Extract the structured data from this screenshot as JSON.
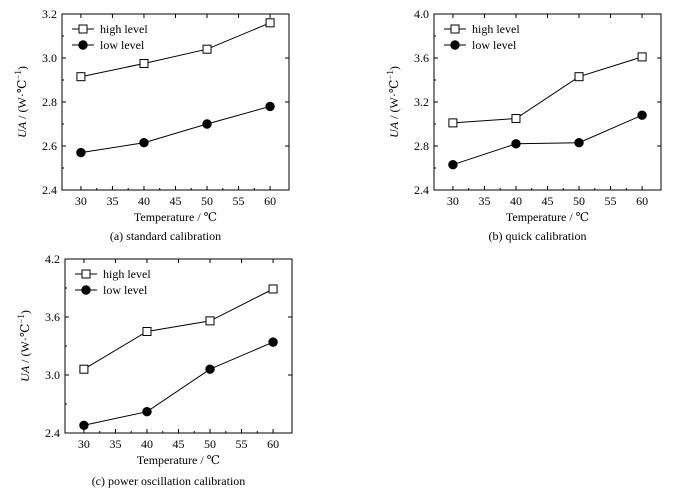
{
  "chart_data": [
    {
      "type": "line",
      "caption": "(a) standard calibration",
      "xlabel": "Temperature / ℃",
      "ylabel_main": "UA",
      "ylabel_unit": " / (W·℃",
      "ylabel_exp": "−1",
      "ylabel_close": ")",
      "xlim": [
        27,
        63
      ],
      "ylim": [
        2.4,
        3.2
      ],
      "xticks": [
        30,
        35,
        40,
        45,
        50,
        55,
        60
      ],
      "xticklabels": [
        "30",
        "35",
        "40",
        "45",
        "50",
        "55",
        "60"
      ],
      "yticks": [
        2.4,
        2.6,
        2.8,
        3.0,
        3.2
      ],
      "yticklabels": [
        "2.4",
        "2.6",
        "2.8",
        "3.0",
        "3.2"
      ],
      "x": [
        30,
        40,
        50,
        60
      ],
      "series": [
        {
          "name": "high level",
          "marker": "open-square",
          "values": [
            2.915,
            2.975,
            3.04,
            3.16
          ]
        },
        {
          "name": "low level",
          "marker": "filled-circle",
          "values": [
            2.57,
            2.615,
            2.7,
            2.78
          ]
        }
      ]
    },
    {
      "type": "line",
      "caption": "(b) quick calibration",
      "xlabel": "Temperature / ℃",
      "ylabel_main": "UA",
      "ylabel_unit": " / (W·℃",
      "ylabel_exp": "−1",
      "ylabel_close": ")",
      "xlim": [
        27,
        63
      ],
      "ylim": [
        2.4,
        4.0
      ],
      "xticks": [
        30,
        35,
        40,
        45,
        50,
        55,
        60
      ],
      "xticklabels": [
        "30",
        "35",
        "40",
        "45",
        "50",
        "55",
        "60"
      ],
      "yticks": [
        2.4,
        2.8,
        3.2,
        3.6,
        4.0
      ],
      "yticklabels": [
        "2.4",
        "2.8",
        "3.2",
        "3.6",
        "4.0"
      ],
      "x": [
        30,
        40,
        50,
        60
      ],
      "series": [
        {
          "name": "high level",
          "marker": "open-square",
          "values": [
            3.01,
            3.05,
            3.43,
            3.61
          ]
        },
        {
          "name": "low level",
          "marker": "filled-circle",
          "values": [
            2.63,
            2.82,
            2.83,
            3.08
          ]
        }
      ]
    },
    {
      "type": "line",
      "caption": "(c) power oscillation calibration",
      "xlabel": "Temperature / ℃",
      "ylabel_main": "UA",
      "ylabel_unit": " / (W·℃",
      "ylabel_exp": "−1",
      "ylabel_close": ")",
      "xlim": [
        27,
        63
      ],
      "ylim": [
        2.4,
        4.2
      ],
      "xticks": [
        30,
        35,
        40,
        45,
        50,
        55,
        60
      ],
      "xticklabels": [
        "30",
        "35",
        "40",
        "45",
        "50",
        "55",
        "60"
      ],
      "yticks": [
        2.4,
        3.0,
        3.6,
        4.2
      ],
      "yticklabels": [
        "2.4",
        "3.0",
        "3.6",
        "4.2"
      ],
      "x": [
        30,
        40,
        50,
        60
      ],
      "series": [
        {
          "name": "high level",
          "marker": "open-square",
          "values": [
            3.06,
            3.45,
            3.56,
            3.89
          ]
        },
        {
          "name": "low level",
          "marker": "filled-circle",
          "values": [
            2.48,
            2.62,
            3.06,
            3.34
          ]
        }
      ]
    }
  ]
}
